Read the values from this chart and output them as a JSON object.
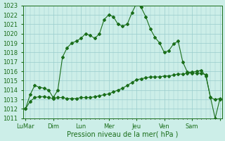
{
  "xlabel": "Pression niveau de la mer( hPa )",
  "ylim": [
    1011,
    1023
  ],
  "background_color": "#cceee8",
  "grid_color": "#99cccc",
  "line_color": "#1a6e1a",
  "xtick_major_positions": [
    0,
    6,
    12,
    18,
    24,
    30,
    36,
    42
  ],
  "xtick_major_labels": [
    "LuMar",
    "Dim",
    "Lun",
    "Mer",
    "Jeu",
    "Ven",
    "Sam",
    ""
  ],
  "fontsize_axis": 6,
  "fontsize_xlabel": 7,
  "marker_size": 2.0,
  "line1_x": [
    0,
    1,
    2,
    3,
    4,
    5,
    6,
    7,
    8,
    9,
    10,
    11,
    12,
    13,
    14,
    15,
    16,
    17,
    18,
    19,
    20,
    21,
    22,
    23,
    24,
    25,
    26,
    27,
    28,
    29,
    30,
    31,
    32,
    33,
    34,
    35,
    36,
    37,
    38,
    39,
    40,
    41,
    42
  ],
  "line1_y": [
    1012.0,
    1013.5,
    1014.5,
    1014.3,
    1014.2,
    1014.0,
    1013.2,
    1014.0,
    1017.5,
    1018.5,
    1019.0,
    1019.2,
    1019.5,
    1020.0,
    1019.8,
    1019.5,
    1020.0,
    1021.5,
    1022.0,
    1021.8,
    1021.0,
    1020.8,
    1021.0,
    1022.2,
    1023.2,
    1022.8,
    1021.8,
    1020.5,
    1019.6,
    1019.0,
    1018.0,
    1018.2,
    1018.9,
    1019.2,
    1017.0,
    1015.9,
    1015.9,
    1016.0,
    1016.1,
    1015.5,
    1013.2,
    1011.0,
    1013.0
  ],
  "line2_x": [
    0,
    1,
    2,
    3,
    4,
    5,
    6,
    7,
    8,
    9,
    10,
    11,
    12,
    13,
    14,
    15,
    16,
    17,
    18,
    19,
    20,
    21,
    22,
    23,
    24,
    25,
    26,
    27,
    28,
    29,
    30,
    31,
    32,
    33,
    34,
    35,
    36,
    37,
    38,
    39,
    40,
    41,
    42
  ],
  "line2_y": [
    1012.0,
    1012.8,
    1013.2,
    1013.3,
    1013.3,
    1013.2,
    1013.1,
    1013.2,
    1013.2,
    1013.1,
    1013.1,
    1013.1,
    1013.2,
    1013.2,
    1013.2,
    1013.3,
    1013.4,
    1013.5,
    1013.6,
    1013.8,
    1014.0,
    1014.2,
    1014.5,
    1014.8,
    1015.1,
    1015.2,
    1015.3,
    1015.4,
    1015.4,
    1015.4,
    1015.5,
    1015.5,
    1015.6,
    1015.7,
    1015.7,
    1015.8,
    1015.8,
    1015.8,
    1015.8,
    1015.6,
    1013.2,
    1013.0,
    1013.1
  ]
}
